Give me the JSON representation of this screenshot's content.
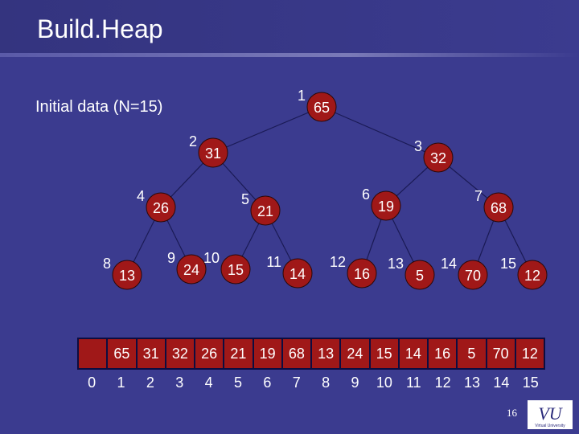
{
  "title": "Build.Heap",
  "subtitle": "Initial data (N=15)",
  "nodes": [
    {
      "index": "1",
      "value": "65"
    },
    {
      "index": "2",
      "value": "31"
    },
    {
      "index": "3",
      "value": "32"
    },
    {
      "index": "4",
      "value": "26"
    },
    {
      "index": "5",
      "value": "21"
    },
    {
      "index": "6",
      "value": "19"
    },
    {
      "index": "7",
      "value": "68"
    },
    {
      "index": "8",
      "value": "13"
    },
    {
      "index": "9",
      "value": "24"
    },
    {
      "index": "10",
      "value": "15"
    },
    {
      "index": "11",
      "value": "14"
    },
    {
      "index": "12",
      "value": "16"
    },
    {
      "index": "13",
      "value": "5"
    },
    {
      "index": "14",
      "value": "70"
    },
    {
      "index": "15",
      "value": "12"
    }
  ],
  "array_values": [
    "",
    "65",
    "31",
    "32",
    "26",
    "21",
    "19",
    "68",
    "13",
    "24",
    "15",
    "14",
    "16",
    "5",
    "70",
    "12"
  ],
  "array_indices": [
    "0",
    "1",
    "2",
    "3",
    "4",
    "5",
    "6",
    "7",
    "8",
    "9",
    "10",
    "11",
    "12",
    "13",
    "14",
    "15"
  ],
  "page_number": "16",
  "logo": {
    "text": "VU",
    "subtext": "Virtual University"
  },
  "colors": {
    "background": "#3b3b8f",
    "edge": "#1a1a55",
    "node_fill": "#a01818",
    "cell_fill": "#a01818",
    "empty_cell": "#a01818"
  }
}
